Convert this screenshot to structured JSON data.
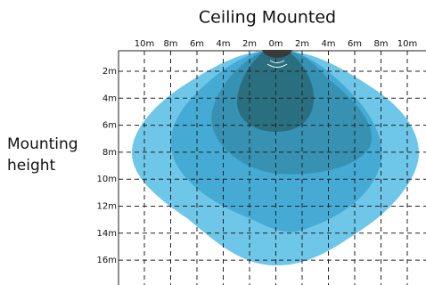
{
  "title": "Ceiling Mounted",
  "x_labels": [
    "10m",
    "8m",
    "6m",
    "4m",
    "2m",
    "0m",
    "2m",
    "4m",
    "6m",
    "8m",
    "10m"
  ],
  "y_labels": [
    "2m",
    "4m",
    "6m",
    "8m",
    "10m",
    "12m",
    "14m",
    "16m"
  ],
  "side_label": [
    "Mounting",
    "height"
  ]
}
